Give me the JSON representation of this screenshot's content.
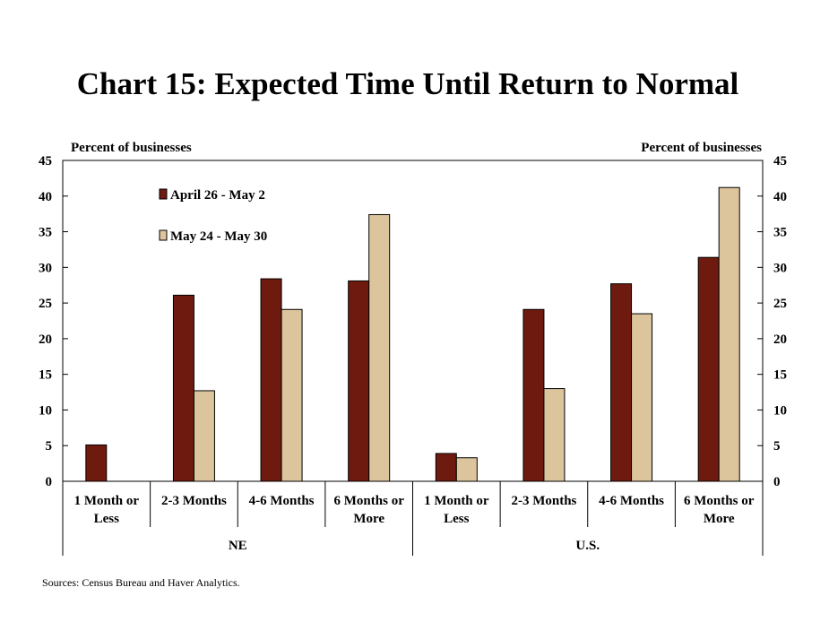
{
  "chart_data": {
    "type": "bar",
    "title": "Chart 15: Expected Time Until Return to Normal",
    "ylabel_left": "Percent of businesses",
    "ylabel_right": "Percent of businesses",
    "ylim": [
      0,
      45
    ],
    "yticks": [
      0,
      5,
      10,
      15,
      20,
      25,
      30,
      35,
      40,
      45
    ],
    "grid": false,
    "legend_position": "top-left",
    "groups": [
      {
        "label": "NE",
        "categories": [
          "1 Month or Less",
          "2-3 Months",
          "4-6 Months",
          "6 Months or More"
        ]
      },
      {
        "label": "U.S.",
        "categories": [
          "1 Month or Less",
          "2-3 Months",
          "4-6 Months",
          "6 Months or More"
        ]
      }
    ],
    "category_labels": [
      [
        "1 Month or",
        "Less"
      ],
      [
        "2-3 Months"
      ],
      [
        "4-6 Months"
      ],
      [
        "6 Months or",
        "More"
      ],
      [
        "1 Month or",
        "Less"
      ],
      [
        "2-3 Months"
      ],
      [
        "4-6 Months"
      ],
      [
        "6 Months or",
        "More"
      ]
    ],
    "series": [
      {
        "name": "April 26 - May 2",
        "color": "#6e1a0f",
        "values": [
          5.1,
          26.1,
          28.4,
          28.1,
          3.9,
          24.1,
          27.7,
          31.4
        ]
      },
      {
        "name": "May 24 - May 30",
        "color": "#dcc59c",
        "values": [
          0,
          12.7,
          24.1,
          37.4,
          3.3,
          13.0,
          23.5,
          41.2
        ]
      }
    ]
  },
  "source": "Sources: Census Bureau and Haver Analytics."
}
